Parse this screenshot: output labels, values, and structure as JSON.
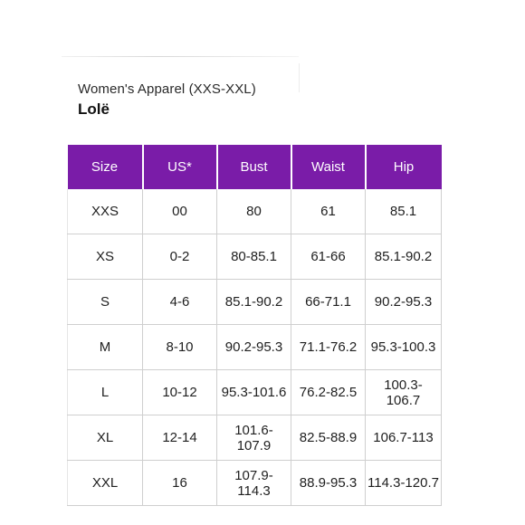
{
  "header": {
    "subtitle": "Women's Apparel (XXS-XXL)",
    "brand": "Lolë"
  },
  "colors": {
    "header_background": "#7a1ca8",
    "header_text": "#ffffff"
  },
  "table": {
    "columns": [
      "Size",
      "US*",
      "Bust",
      "Waist",
      "Hip"
    ],
    "rows": [
      [
        "XXS",
        "00",
        "80",
        "61",
        "85.1"
      ],
      [
        "XS",
        "0-2",
        "80-85.1",
        "61-66",
        "85.1-90.2"
      ],
      [
        "S",
        "4-6",
        "85.1-90.2",
        "66-71.1",
        "90.2-95.3"
      ],
      [
        "M",
        "8-10",
        "90.2-95.3",
        "71.1-76.2",
        "95.3-100.3"
      ],
      [
        "L",
        "10-12",
        "95.3-101.6",
        "76.2-82.5",
        "100.3-106.7"
      ],
      [
        "XL",
        "12-14",
        "101.6-107.9",
        "82.5-88.9",
        "106.7-113"
      ],
      [
        "XXL",
        "16",
        "107.9-114.3",
        "88.9-95.3",
        "114.3-120.7"
      ]
    ]
  }
}
